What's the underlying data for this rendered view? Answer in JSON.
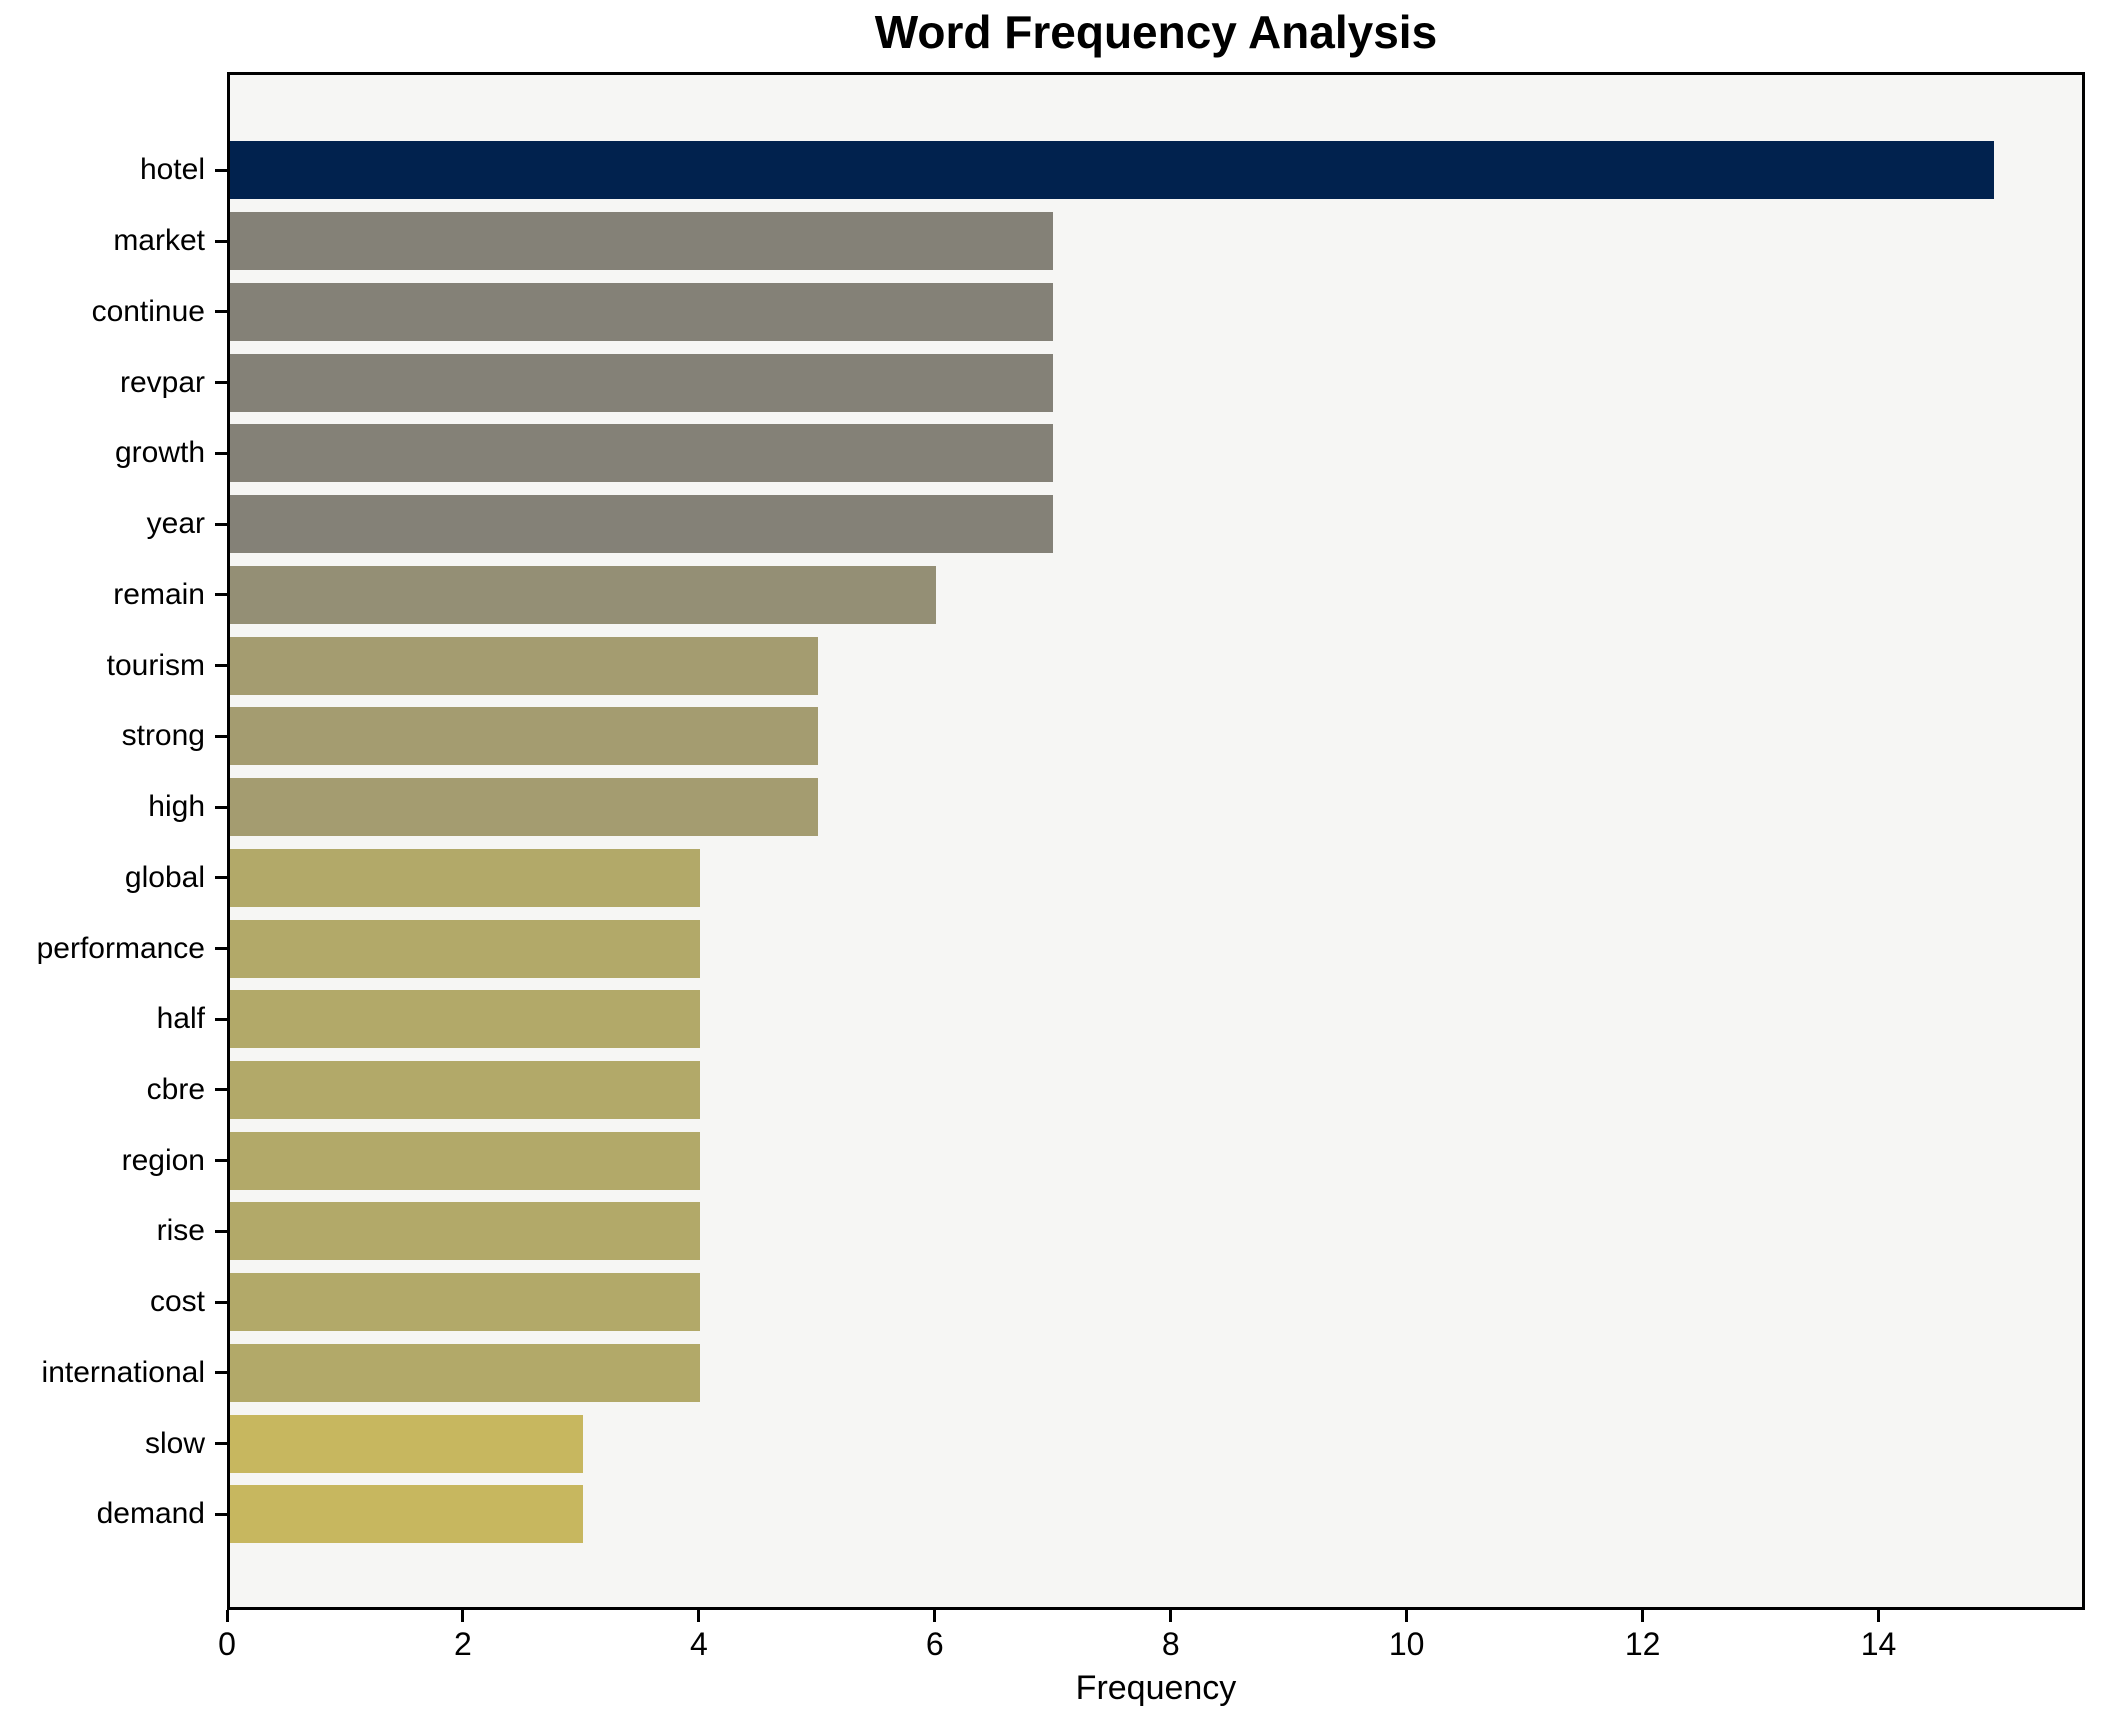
{
  "title": "Word Frequency Analysis",
  "chart_data": {
    "type": "bar",
    "orientation": "horizontal",
    "title": "Word Frequency Analysis",
    "xlabel": "Frequency",
    "ylabel": "",
    "categories": [
      "hotel",
      "market",
      "continue",
      "revpar",
      "growth",
      "year",
      "remain",
      "tourism",
      "strong",
      "high",
      "global",
      "performance",
      "half",
      "cbre",
      "region",
      "rise",
      "cost",
      "international",
      "slow",
      "demand"
    ],
    "values": [
      15,
      7,
      7,
      7,
      7,
      7,
      6,
      5,
      5,
      5,
      4,
      4,
      4,
      4,
      4,
      4,
      4,
      4,
      3,
      3
    ],
    "bar_colors": [
      "#01224e",
      "#848177",
      "#848177",
      "#848177",
      "#848177",
      "#848177",
      "#948f75",
      "#a49c70",
      "#a49c70",
      "#a49c70",
      "#b2a969",
      "#b2a969",
      "#b2a969",
      "#b2a969",
      "#b2a969",
      "#b2a969",
      "#b2a969",
      "#b2a969",
      "#c7b75f",
      "#c7b75f"
    ],
    "color_scale": "cividis-reversed",
    "xlim": [
      0,
      15.75
    ],
    "xticks": [
      0,
      2,
      4,
      6,
      8,
      10,
      12,
      14
    ],
    "xtick_labels": [
      "0",
      "2",
      "4",
      "6",
      "8",
      "10",
      "12",
      "14"
    ],
    "grid": false,
    "legend": "none",
    "plot_background": "#f6f6f4",
    "figure_background": "#ffffff",
    "axis_color": "#000000",
    "text_color": "#000000"
  }
}
